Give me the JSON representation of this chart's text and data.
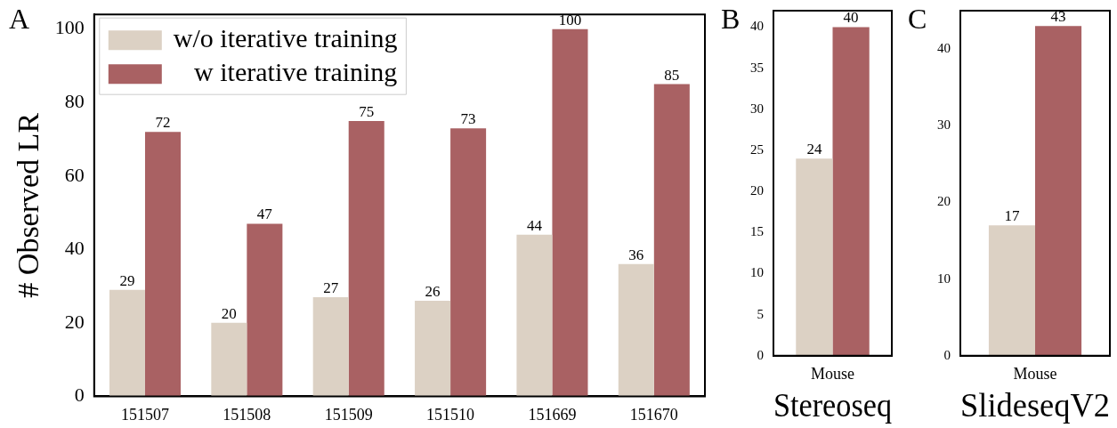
{
  "chart_data": [
    {
      "type": "bar",
      "annotations": [
        "A"
      ],
      "ylabel": "# Observed LR",
      "categories": [
        "151507",
        "151508",
        "151509",
        "151510",
        "151669",
        "151670"
      ],
      "series": [
        {
          "name": "w/o iterative training",
          "color": "#dcd1c4",
          "values": [
            29,
            20,
            27,
            26,
            44,
            36
          ]
        },
        {
          "name": "w iterative training",
          "color": "#a96163",
          "values": [
            72,
            47,
            75,
            73,
            100,
            85
          ]
        }
      ],
      "ylim": [
        0,
        104
      ],
      "yticks": [
        0,
        20,
        40,
        60,
        80,
        100
      ],
      "data_labels": true,
      "legend": "top left",
      "grid": false
    },
    {
      "type": "bar",
      "annotations": [
        "B"
      ],
      "xlabel": "Stereoseq",
      "categories": [
        "Mouse"
      ],
      "series": [
        {
          "color": "#dcd1c4",
          "values": [
            24
          ]
        },
        {
          "color": "#a96163",
          "values": [
            40
          ]
        }
      ],
      "ylim": [
        0,
        42
      ],
      "yticks": [
        0,
        5,
        10,
        15,
        20,
        25,
        30,
        35,
        40
      ],
      "data_labels": true,
      "grid": false
    },
    {
      "type": "bar",
      "annotations": [
        "C"
      ],
      "xlabel": "SlideseqV2",
      "categories": [
        "Mouse"
      ],
      "series": [
        {
          "color": "#dcd1c4",
          "values": [
            17
          ]
        },
        {
          "color": "#a96163",
          "values": [
            43
          ]
        }
      ],
      "ylim": [
        0,
        45
      ],
      "yticks": [
        0,
        10,
        20,
        30,
        40
      ],
      "data_labels": true,
      "grid": false
    }
  ]
}
